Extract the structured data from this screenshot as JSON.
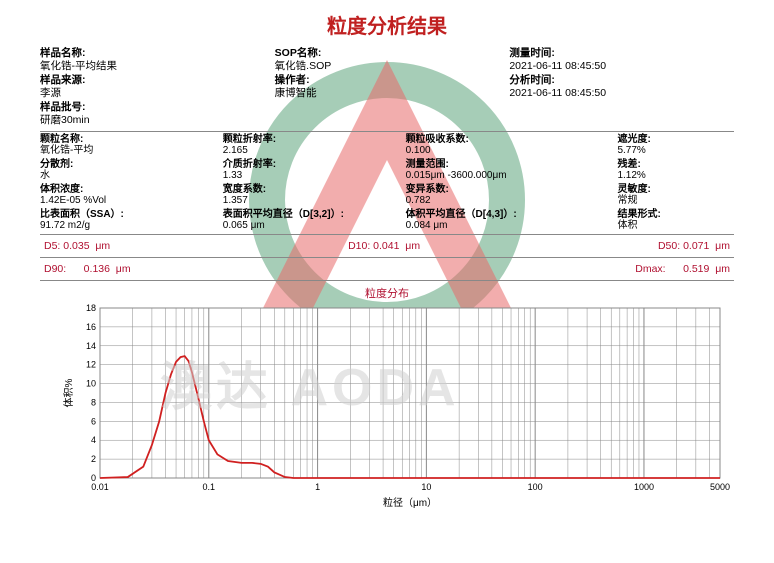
{
  "report": {
    "title": "粒度分析结果",
    "chart_title": "粒度分布",
    "watermark_text": "澳达 AODA"
  },
  "meta": {
    "sample_name_label": "样品名称:",
    "sample_name": "氧化锆-平均结果",
    "sop_name_label": "SOP名称:",
    "sop_name": "氧化锆.SOP",
    "meas_time_label": "测量时间:",
    "meas_time": "2021-06-11 08:45:50",
    "sample_source_label": "样品来源:",
    "sample_source": "李源",
    "operator_label": "操作者:",
    "operator": "康博智能",
    "analysis_time_label": "分析时间:",
    "analysis_time": "2021-06-11 08:45:50",
    "sample_batch_label": "样品批号:",
    "sample_batch": "研磨30min"
  },
  "params": {
    "particle_name_label": "颗粒名称:",
    "particle_name": "氧化锆-平均",
    "ri_label": "颗粒折射率:",
    "ri": "2.165",
    "abs_label": "颗粒吸收系数:",
    "abs": "0.100",
    "obscuration_label": "遮光度:",
    "obscuration": "5.77%",
    "dispersant_label": "分散剂:",
    "dispersant": "水",
    "dispersant_ri_label": "介质折射率:",
    "dispersant_ri": "1.33",
    "range_label": "测量范围:",
    "range": "0.015μm -3600.000μm",
    "residual_label": "残差:",
    "residual": "1.12%",
    "vol_conc_label": "体积浓度:",
    "vol_conc": "1.42E-05      %Vol",
    "span_label": "宽度系数:",
    "span": "1.357",
    "uniformity_label": "变异系数:",
    "uniformity": "0.782",
    "sensitivity_label": "灵敏度:",
    "sensitivity": "常规",
    "ssa_label": "比表面积（SSA）:",
    "ssa": "91.72            m2/g",
    "d32_label": "表面积平均直径（D[3,2]）:",
    "d32": "0.065         μm",
    "d43_label": "体积平均直径（D[4,3]）:",
    "d43": "0.084         μm",
    "result_type_label": "结果形式:",
    "result_type": "体积"
  },
  "dvalues": {
    "d5": "D5: 0.035  μm",
    "d10": "D10: 0.041  μm",
    "d50": "D50: 0.071  μm",
    "d90": "D90:      0.136  μm",
    "dmax": "Dmax:      0.519  μm"
  },
  "chart": {
    "type": "line",
    "xscale": "log",
    "xlim": [
      0.01,
      5000
    ],
    "ylim": [
      0,
      18
    ],
    "ytick_step": 2,
    "xticks": [
      0.01,
      0.1,
      1,
      10,
      100,
      1000,
      5000
    ],
    "xlabel": "粒径（μm）",
    "ylabel": "体积%",
    "line_color": "#d02020",
    "line_width": 1.8,
    "grid_color": "#888888",
    "background_color": "#ffffff",
    "data": [
      [
        0.01,
        0
      ],
      [
        0.018,
        0.1
      ],
      [
        0.025,
        1.2
      ],
      [
        0.03,
        3.5
      ],
      [
        0.035,
        6.0
      ],
      [
        0.04,
        9.0
      ],
      [
        0.045,
        11.0
      ],
      [
        0.05,
        12.3
      ],
      [
        0.055,
        12.8
      ],
      [
        0.06,
        12.9
      ],
      [
        0.065,
        12.4
      ],
      [
        0.07,
        11.2
      ],
      [
        0.08,
        8.5
      ],
      [
        0.09,
        6.0
      ],
      [
        0.1,
        4.0
      ],
      [
        0.12,
        2.5
      ],
      [
        0.15,
        1.8
      ],
      [
        0.2,
        1.6
      ],
      [
        0.25,
        1.6
      ],
      [
        0.3,
        1.5
      ],
      [
        0.35,
        1.2
      ],
      [
        0.4,
        0.6
      ],
      [
        0.5,
        0.1
      ],
      [
        0.6,
        0
      ],
      [
        1,
        0
      ],
      [
        10,
        0
      ],
      [
        100,
        0
      ],
      [
        1000,
        0
      ],
      [
        5000,
        0
      ]
    ]
  },
  "logo": {
    "circle_color": "#3a9060",
    "triangle_color": "#e86a6a"
  }
}
